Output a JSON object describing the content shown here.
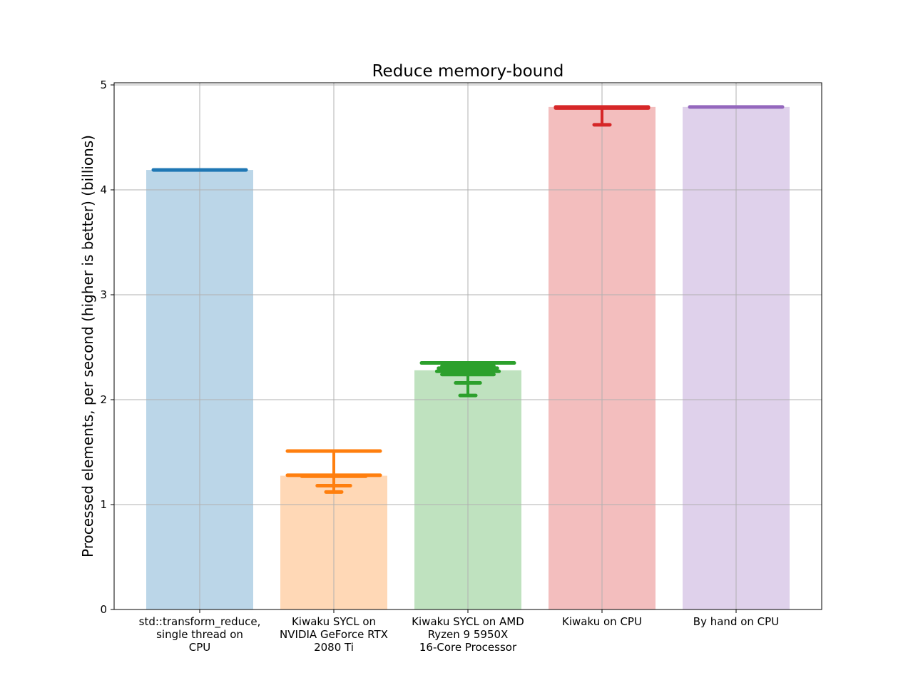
{
  "chart_data": {
    "type": "bar",
    "title": "Reduce memory-bound",
    "xlabel": "",
    "ylabel": "Processed elements, per second (higher is better) (billions)",
    "ylim": [
      0,
      5
    ],
    "yticks": [
      "0",
      "1",
      "2",
      "3",
      "4",
      "5"
    ],
    "grid": true,
    "categories": [
      [
        "std::transform_reduce,",
        "single thread on",
        "CPU"
      ],
      [
        "Kiwaku SYCL on",
        "NVIDIA GeForce RTX",
        "2080 Ti"
      ],
      [
        "Kiwaku SYCL on AMD",
        "Ryzen 9 5950X",
        "16-Core Processor"
      ],
      [
        "Kiwaku on CPU"
      ],
      [
        "By hand on CPU"
      ]
    ],
    "bars": [
      {
        "value": 4.19,
        "color": "#1f77b4",
        "samples": [
          4.19
        ],
        "minmax": null
      },
      {
        "value": 1.275,
        "color": "#ff7f0e",
        "samples": [
          1.28,
          1.27,
          1.18,
          1.12,
          1.51
        ],
        "minmax": [
          1.12,
          1.51
        ]
      },
      {
        "value": 2.28,
        "color": "#2ca02c",
        "samples": [
          2.35,
          2.32,
          2.3,
          2.27,
          2.24,
          2.16,
          2.04
        ],
        "minmax": [
          2.04,
          2.35
        ]
      },
      {
        "value": 4.79,
        "color": "#d62728",
        "samples": [
          4.79,
          4.78,
          4.62
        ],
        "minmax": [
          4.62,
          4.79
        ]
      },
      {
        "value": 4.79,
        "color": "#9467bd",
        "samples": [
          4.79
        ],
        "minmax": null
      }
    ]
  }
}
